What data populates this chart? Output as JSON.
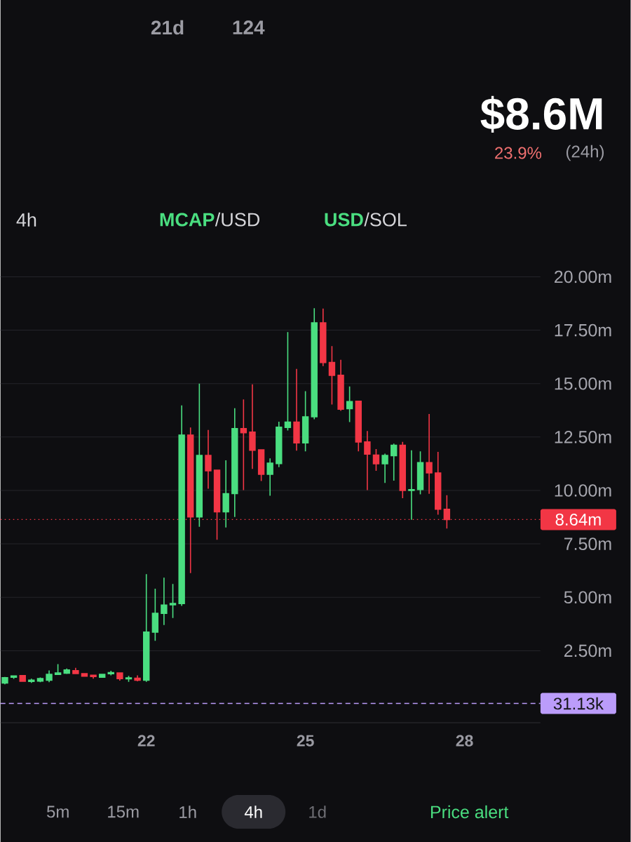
{
  "chart_data": {
    "type": "candlestick",
    "annotations": [
      "21d",
      "124",
      "$8.6M",
      "23.9%",
      "(24h)",
      "4h",
      "MCAP",
      "/USD",
      "USD",
      "/SOL",
      "5m",
      "15m",
      "1h",
      "4h",
      "1d",
      "Price alert"
    ],
    "x": [
      19.333,
      19.5,
      19.667,
      19.833,
      20,
      20.167,
      20.333,
      20.5,
      20.667,
      20.833,
      21,
      21.167,
      21.333,
      21.5,
      21.667,
      21.833,
      22,
      22.167,
      22.333,
      22.5,
      22.667,
      22.833,
      23,
      23.167,
      23.333,
      23.5,
      23.667,
      23.833,
      24,
      24.167,
      24.333,
      24.5,
      24.667,
      24.833,
      25,
      25.167,
      25.333,
      25.5,
      25.667,
      25.833,
      26,
      26.167,
      26.333,
      26.5,
      26.667,
      26.833,
      27,
      27.167,
      27.333,
      27.5,
      27.667
    ],
    "ohlc": [
      [
        0.99,
        1.27,
        0.93,
        1.24
      ],
      [
        1.26,
        1.34,
        1.18,
        1.32
      ],
      [
        1.34,
        1.35,
        1.05,
        1.07
      ],
      [
        1.06,
        1.19,
        0.99,
        1.12
      ],
      [
        1.08,
        1.25,
        1.03,
        1.2
      ],
      [
        1.12,
        1.58,
        1.03,
        1.39
      ],
      [
        1.39,
        1.87,
        1.38,
        1.46
      ],
      [
        1.45,
        1.67,
        1.41,
        1.6
      ],
      [
        1.57,
        1.7,
        1.42,
        1.43
      ],
      [
        1.43,
        1.45,
        1.28,
        1.31
      ],
      [
        1.35,
        1.36,
        1.19,
        1.29
      ],
      [
        1.26,
        1.4,
        1.25,
        1.39
      ],
      [
        1.42,
        1.56,
        1.35,
        1.48
      ],
      [
        1.46,
        1.47,
        1.1,
        1.19
      ],
      [
        1.18,
        1.32,
        1.04,
        1.23
      ],
      [
        1.21,
        1.35,
        1.07,
        1.12
      ],
      [
        1.12,
        6.08,
        1.04,
        3.37
      ],
      [
        3.37,
        5.4,
        2.96,
        4.25
      ],
      [
        4.25,
        5.92,
        3.7,
        4.64
      ],
      [
        4.65,
        5.62,
        4.03,
        4.71
      ],
      [
        4.71,
        13.98,
        4.6,
        12.59
      ],
      [
        12.59,
        12.95,
        6.13,
        8.76
      ],
      [
        8.76,
        15.0,
        8.3,
        11.64
      ],
      [
        11.64,
        12.83,
        10.08,
        10.92
      ],
      [
        10.95,
        10.96,
        7.69,
        9.0
      ],
      [
        9.0,
        11.41,
        8.27,
        9.85
      ],
      [
        9.85,
        13.85,
        8.76,
        12.9
      ],
      [
        12.9,
        14.26,
        10.02,
        12.7
      ],
      [
        12.73,
        14.97,
        11.01,
        11.88
      ],
      [
        11.9,
        11.9,
        10.44,
        10.76
      ],
      [
        10.76,
        11.5,
        9.75,
        11.28
      ],
      [
        11.26,
        13.22,
        11.09,
        12.96
      ],
      [
        12.95,
        17.41,
        12.81,
        13.2
      ],
      [
        13.2,
        15.69,
        11.86,
        12.23
      ],
      [
        12.23,
        14.65,
        11.83,
        13.45
      ],
      [
        13.45,
        18.53,
        13.33,
        17.85
      ],
      [
        17.85,
        18.51,
        15.82,
        15.99
      ],
      [
        15.99,
        16.76,
        14.02,
        15.39
      ],
      [
        15.39,
        16.12,
        13.73,
        13.8
      ],
      [
        13.83,
        14.87,
        13.2,
        14.16
      ],
      [
        14.18,
        14.2,
        11.83,
        12.27
      ],
      [
        12.27,
        12.78,
        10.02,
        11.7
      ],
      [
        11.66,
        11.94,
        10.92,
        11.25
      ],
      [
        11.25,
        11.72,
        10.35,
        11.64
      ],
      [
        11.63,
        12.19,
        10.46,
        12.12
      ],
      [
        12.12,
        12.27,
        9.64,
        10.0
      ],
      [
        10.0,
        11.88,
        8.63,
        10.04
      ],
      [
        10.04,
        11.83,
        9.82,
        11.3
      ],
      [
        11.3,
        13.58,
        9.84,
        10.82
      ],
      [
        10.82,
        11.81,
        8.87,
        9.12
      ],
      [
        9.12,
        9.78,
        8.22,
        8.64
      ]
    ],
    "colors": [
      "#4ade80",
      "#4ade80",
      "#f23645",
      "#4ade80",
      "#4ade80",
      "#4ade80",
      "#4ade80",
      "#4ade80",
      "#f23645",
      "#f23645",
      "#f23645",
      "#4ade80",
      "#4ade80",
      "#f23645",
      "#4ade80",
      "#f23645",
      "#4ade80",
      "#4ade80",
      "#4ade80",
      "#4ade80",
      "#4ade80",
      "#f23645",
      "#4ade80",
      "#f23645",
      "#f23645",
      "#4ade80",
      "#4ade80",
      "#f23645",
      "#f23645",
      "#f23645",
      "#4ade80",
      "#4ade80",
      "#4ade80",
      "#f23645",
      "#4ade80",
      "#4ade80",
      "#f23645",
      "#f23645",
      "#f23645",
      "#4ade80",
      "#f23645",
      "#f23645",
      "#f23645",
      "#4ade80",
      "#4ade80",
      "#f23645",
      "#4ade80",
      "#4ade80",
      "#f23645",
      "#f23645",
      "#f23645"
    ],
    "xlim": [
      19.25,
      29.43
    ],
    "ylim": [
      -0.87,
      20
    ],
    "xticks": [
      22,
      25,
      28
    ],
    "yticks": [
      {
        "value": 2.5,
        "label": "2.50m"
      },
      {
        "value": 5,
        "label": "5.00m"
      },
      {
        "value": 7.5,
        "label": "7.50m"
      },
      {
        "value": 10,
        "label": "10.00m"
      },
      {
        "value": 12.5,
        "label": "12.50m"
      },
      {
        "value": 15,
        "label": "15.00m"
      },
      {
        "value": 17.5,
        "label": "17.50m"
      },
      {
        "value": 20,
        "label": "20.00m"
      }
    ],
    "grid": "y",
    "ref_lines": [
      {
        "axis": "y",
        "value": 8.64,
        "label": "8.64m",
        "color": "#f23645",
        "line_style": "dotted"
      },
      {
        "axis": "y",
        "value": 0.03113,
        "label": "31.13k",
        "color": "#bb9cfa",
        "line_style": "dashed"
      }
    ]
  }
}
